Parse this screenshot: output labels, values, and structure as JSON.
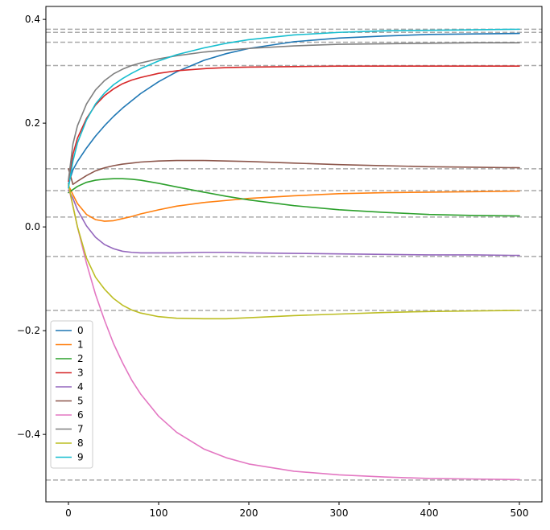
{
  "chart_data": {
    "type": "line",
    "title": "",
    "xlabel": "",
    "ylabel": "",
    "xlim": [
      -25,
      525
    ],
    "ylim": [
      -0.53,
      0.425
    ],
    "x_ticks": [
      0,
      100,
      200,
      300,
      400,
      500
    ],
    "y_ticks": [
      -0.4,
      -0.2,
      0.0,
      0.2,
      0.4
    ],
    "x_tick_labels": [
      "0",
      "100",
      "200",
      "300",
      "400",
      "500"
    ],
    "y_tick_labels": [
      "−0.4",
      "−0.2",
      "0.0",
      "0.2",
      "0.4"
    ],
    "grid": false,
    "legend_position": "lower-left",
    "reference_lines": {
      "style": "dashed",
      "color": "#aaaaaa",
      "y": [
        0.381,
        0.375,
        0.356,
        0.311,
        0.112,
        0.07,
        0.019,
        -0.057,
        -0.161,
        -0.488
      ]
    },
    "x": [
      0,
      5,
      10,
      20,
      30,
      40,
      50,
      60,
      70,
      80,
      100,
      120,
      150,
      175,
      200,
      250,
      300,
      350,
      400,
      450,
      500
    ],
    "series": [
      {
        "name": "0",
        "color": "#1f77b4",
        "values": [
          0.083,
          0.11,
          0.126,
          0.152,
          0.175,
          0.195,
          0.213,
          0.229,
          0.243,
          0.257,
          0.28,
          0.299,
          0.321,
          0.334,
          0.344,
          0.357,
          0.364,
          0.368,
          0.371,
          0.372,
          0.373
        ]
      },
      {
        "name": "1",
        "color": "#ff7f0e",
        "values": [
          0.08,
          0.062,
          0.045,
          0.024,
          0.014,
          0.011,
          0.012,
          0.016,
          0.02,
          0.025,
          0.033,
          0.04,
          0.047,
          0.051,
          0.055,
          0.06,
          0.064,
          0.066,
          0.067,
          0.068,
          0.069
        ]
      },
      {
        "name": "2",
        "color": "#2ca02c",
        "values": [
          0.066,
          0.072,
          0.078,
          0.086,
          0.09,
          0.092,
          0.093,
          0.093,
          0.092,
          0.09,
          0.084,
          0.077,
          0.067,
          0.059,
          0.052,
          0.041,
          0.033,
          0.028,
          0.024,
          0.022,
          0.021
        ]
      },
      {
        "name": "3",
        "color": "#d62728",
        "values": [
          0.088,
          0.14,
          0.171,
          0.209,
          0.235,
          0.253,
          0.266,
          0.276,
          0.283,
          0.288,
          0.296,
          0.301,
          0.305,
          0.307,
          0.308,
          0.309,
          0.31,
          0.31,
          0.31,
          0.31,
          0.31
        ]
      },
      {
        "name": "4",
        "color": "#9467bd",
        "values": [
          0.071,
          0.055,
          0.033,
          0.002,
          -0.02,
          -0.034,
          -0.042,
          -0.047,
          -0.049,
          -0.05,
          -0.05,
          -0.05,
          -0.049,
          -0.049,
          -0.05,
          -0.051,
          -0.052,
          -0.053,
          -0.054,
          -0.054,
          -0.055
        ]
      },
      {
        "name": "5",
        "color": "#8c564b",
        "values": [
          0.112,
          0.082,
          0.088,
          0.099,
          0.108,
          0.114,
          0.118,
          0.121,
          0.123,
          0.125,
          0.127,
          0.128,
          0.128,
          0.127,
          0.126,
          0.123,
          0.12,
          0.118,
          0.116,
          0.115,
          0.114
        ]
      },
      {
        "name": "6",
        "color": "#e377c2",
        "values": [
          0.078,
          0.04,
          0.0,
          -0.07,
          -0.13,
          -0.18,
          -0.225,
          -0.262,
          -0.295,
          -0.322,
          -0.365,
          -0.396,
          -0.428,
          -0.445,
          -0.457,
          -0.471,
          -0.478,
          -0.482,
          -0.485,
          -0.486,
          -0.487
        ]
      },
      {
        "name": "7",
        "color": "#7f7f7f",
        "values": [
          0.091,
          0.16,
          0.195,
          0.237,
          0.264,
          0.282,
          0.295,
          0.304,
          0.311,
          0.316,
          0.324,
          0.33,
          0.337,
          0.341,
          0.344,
          0.349,
          0.352,
          0.353,
          0.354,
          0.355,
          0.355
        ]
      },
      {
        "name": "8",
        "color": "#bcbd22",
        "values": [
          0.082,
          0.04,
          0.0,
          -0.06,
          -0.097,
          -0.12,
          -0.138,
          -0.151,
          -0.16,
          -0.166,
          -0.173,
          -0.176,
          -0.177,
          -0.177,
          -0.175,
          -0.171,
          -0.168,
          -0.165,
          -0.163,
          -0.162,
          -0.161
        ]
      },
      {
        "name": "9",
        "color": "#17becf",
        "values": [
          0.075,
          0.127,
          0.162,
          0.206,
          0.237,
          0.258,
          0.274,
          0.286,
          0.296,
          0.305,
          0.32,
          0.332,
          0.345,
          0.354,
          0.361,
          0.37,
          0.375,
          0.378,
          0.379,
          0.38,
          0.381
        ]
      }
    ]
  }
}
